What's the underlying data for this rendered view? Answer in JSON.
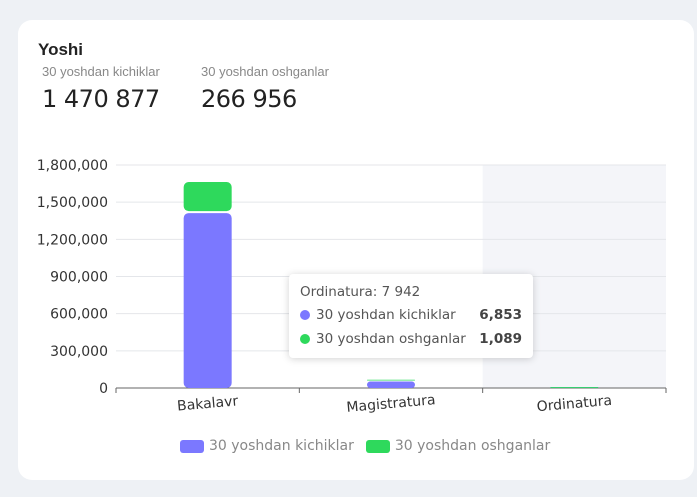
{
  "card": {
    "title": "Yoshi"
  },
  "stats": [
    {
      "label": "30 yoshdan kichiklar",
      "value": "1 470 877"
    },
    {
      "label": "30 yoshdan oshganlar",
      "value": "266 956"
    }
  ],
  "tooltip": {
    "header": "Ordinatura: 7 942",
    "rows": [
      {
        "label": "30 yoshdan kichiklar",
        "value": "6,853"
      },
      {
        "label": "30 yoshdan oshganlar",
        "value": "1,089"
      }
    ]
  },
  "chart_data": {
    "type": "bar",
    "stacked": true,
    "categories": [
      "Bakalavr",
      "Magistratura",
      "Ordinatura"
    ],
    "series": [
      {
        "name": "30 yoshdan kichiklar",
        "color": "#7b78ff",
        "values": [
          1412000,
          52024,
          6853
        ]
      },
      {
        "name": "30 yoshdan oshganlar",
        "color": "#2ed95c",
        "values": [
          250867,
          15000,
          1089
        ]
      }
    ],
    "ylim": [
      0,
      1800000
    ],
    "yticks": [
      "0",
      "300,000",
      "600,000",
      "900,000",
      "1,200,000",
      "1,500,000",
      "1,800,000"
    ],
    "grid": true,
    "legend": "bottom",
    "highlighted_category": "Ordinatura"
  }
}
